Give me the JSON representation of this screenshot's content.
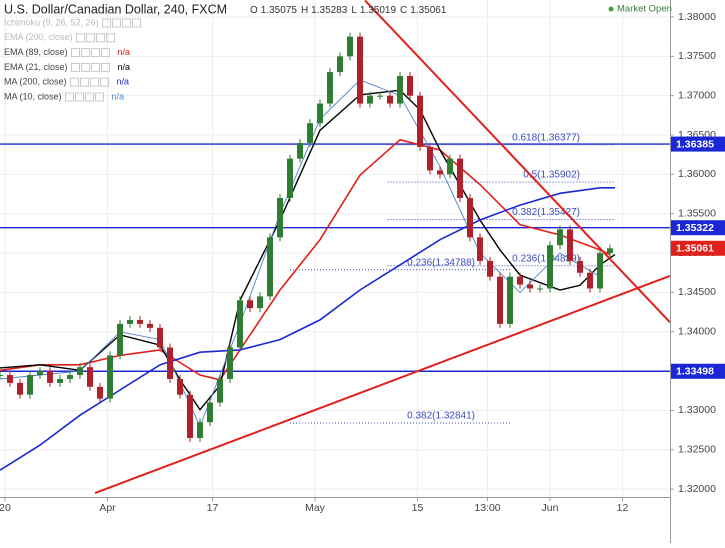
{
  "chart_data": {
    "type": "candlestick",
    "title": "U.S. Dollar/Canadian Dollar, 240, FXCM",
    "ohlc": [
      {
        "label": "O",
        "value": 1.35075
      },
      {
        "label": "H",
        "value": 1.35283
      },
      {
        "label": "L",
        "value": 1.35019
      },
      {
        "label": "C",
        "value": 1.35061
      }
    ],
    "status": "Market Open",
    "hidden_indicators": [
      "Ichimoku (9, 26, 52, 26)",
      "EMA (200, close)"
    ],
    "up_color": "#2e7d32",
    "down_color": "#b0222b",
    "x": [
      0,
      2,
      4,
      6,
      8,
      10,
      12,
      14,
      16,
      18,
      20,
      22,
      24,
      26,
      28,
      30,
      32,
      34,
      36,
      38,
      40,
      42,
      44,
      46,
      48,
      50,
      52,
      54,
      56,
      58,
      60,
      62,
      64,
      66,
      68,
      70,
      72,
      74,
      76,
      78,
      80,
      82,
      84,
      86,
      88,
      90,
      92,
      94,
      96,
      98,
      100,
      102,
      104,
      106,
      108,
      110,
      112,
      114,
      116,
      118,
      120,
      122
    ],
    "values": [
      1.3345,
      1.3335,
      1.332,
      1.3345,
      1.335,
      1.3335,
      1.334,
      1.3345,
      1.3355,
      1.333,
      1.3315,
      1.337,
      1.341,
      1.3415,
      1.341,
      1.3405,
      1.338,
      1.334,
      1.332,
      1.3265,
      1.3285,
      1.331,
      1.334,
      1.338,
      1.344,
      1.343,
      1.3445,
      1.352,
      1.357,
      1.362,
      1.364,
      1.3665,
      1.369,
      1.373,
      1.375,
      1.3775,
      1.369,
      1.37,
      1.37,
      1.369,
      1.3725,
      1.37,
      1.3635,
      1.3605,
      1.36,
      1.362,
      1.357,
      1.352,
      1.349,
      1.347,
      1.341,
      1.347,
      1.346,
      1.3455,
      1.3455,
      1.351,
      1.353,
      1.349,
      1.3475,
      1.3455,
      1.35,
      1.3506
    ],
    "series": [
      {
        "name": "EMA (89, close)",
        "status": "n/a",
        "color": "#e0201b",
        "width": 1.6,
        "x": [
          0,
          8,
          16,
          24,
          32,
          40,
          44,
          48,
          56,
          64,
          72,
          80,
          88,
          96,
          104,
          112,
          120,
          122
        ],
        "values": [
          1.3351,
          1.3358,
          1.3358,
          1.337,
          1.3377,
          1.3345,
          1.3339,
          1.3377,
          1.3453,
          1.3517,
          1.3599,
          1.3644,
          1.3631,
          1.3587,
          1.3536,
          1.3523,
          1.3504,
          1.3498
        ]
      },
      {
        "name": "EMA (21, close)",
        "status": "n/a",
        "color": "#000000",
        "width": 1.4,
        "x": [
          0,
          8,
          16,
          24,
          32,
          36,
          40,
          44,
          48,
          56,
          64,
          72,
          80,
          84,
          88,
          96,
          100,
          104,
          112,
          116,
          120,
          123
        ],
        "values": [
          1.3354,
          1.3358,
          1.3351,
          1.3396,
          1.3383,
          1.3339,
          1.3301,
          1.3332,
          1.344,
          1.3542,
          1.3656,
          1.3701,
          1.3707,
          1.3682,
          1.3631,
          1.3542,
          1.3504,
          1.3472,
          1.3453,
          1.3459,
          1.3485,
          1.3498
        ]
      },
      {
        "name": "MA (200, close)",
        "status": "n/a",
        "color": "#1b26d6",
        "width": 1.6,
        "x": [
          0,
          8,
          16,
          24,
          32,
          40,
          48,
          56,
          64,
          72,
          80,
          88,
          96,
          104,
          112,
          120,
          123
        ],
        "values": [
          1.3224,
          1.3256,
          1.3294,
          1.3326,
          1.3358,
          1.3374,
          1.3377,
          1.339,
          1.3415,
          1.3453,
          1.3485,
          1.3517,
          1.3542,
          1.3561,
          1.3576,
          1.3583,
          1.3583
        ]
      },
      {
        "name": "MA (10, close)",
        "status": "n/a",
        "color": "#4a86c8",
        "width": 0.9,
        "x": [
          0,
          8,
          16,
          24,
          32,
          40,
          48,
          56,
          64,
          72,
          80,
          88,
          96,
          104,
          112,
          120
        ],
        "values": [
          1.334,
          1.3345,
          1.335,
          1.34,
          1.339,
          1.328,
          1.341,
          1.355,
          1.367,
          1.372,
          1.37,
          1.361,
          1.35,
          1.345,
          1.35,
          1.347
        ]
      }
    ],
    "hlines": [
      {
        "value": 1.36385,
        "label": "1.36385",
        "color": "#1b26d6"
      },
      {
        "value": 1.35322,
        "label": "1.35322",
        "color": "#1b26d6"
      },
      {
        "value": 1.33498,
        "label": "1.33498",
        "color": "#1b26d6"
      }
    ],
    "price_label": {
      "value": 1.35061,
      "label": "1.35061",
      "color": "#e0201b"
    },
    "fib_levels": [
      {
        "label": "0.618(1.36377)",
        "value": 1.36377,
        "x": [
          77.5,
          123
        ]
      },
      {
        "label": "0.5(1.35902)",
        "value": 1.35902,
        "x": [
          77.5,
          123
        ]
      },
      {
        "label": "0.382(1.35427)",
        "value": 1.35427,
        "x": [
          77.5,
          123
        ]
      },
      {
        "label": "0.236(1.34839)",
        "value": 1.34839,
        "x": [
          77.5,
          123
        ]
      },
      {
        "label": "0.236(1.34788)",
        "value": 1.34788,
        "x": [
          58,
          102
        ]
      },
      {
        "label": "0.382(1.32841)",
        "value": 1.32841,
        "x": [
          58,
          102
        ]
      }
    ],
    "fib_color": "#3a4cc0",
    "trendlines": [
      {
        "x": [
          73,
          134
        ],
        "values": [
          1.3821,
          1.3412
        ],
        "color": "#e0201b"
      },
      {
        "x": [
          19,
          134
        ],
        "values": [
          1.3195,
          1.3471
        ],
        "color": "#e0201b"
      }
    ],
    "xlim": [
      0,
      134
    ],
    "ylim": [
      1.319,
      1.38216
    ],
    "xticks": [
      {
        "value": 1,
        "label": "20"
      },
      {
        "value": 21.5,
        "label": "Apr"
      },
      {
        "value": 42.5,
        "label": "17"
      },
      {
        "value": 63,
        "label": "May"
      },
      {
        "value": 83.5,
        "label": "15"
      },
      {
        "value": 97.5,
        "label": "13:00"
      },
      {
        "value": 110,
        "label": "Jun"
      },
      {
        "value": 124.5,
        "label": "12"
      }
    ],
    "yticks": [
      {
        "value": 1.32,
        "label": "1.32000"
      },
      {
        "value": 1.325,
        "label": "1.32500"
      },
      {
        "value": 1.33,
        "label": "1.33000"
      },
      {
        "value": 1.335,
        "label": "1.33500"
      },
      {
        "value": 1.34,
        "label": "1.34000"
      },
      {
        "value": 1.345,
        "label": "1.34500"
      },
      {
        "value": 1.35,
        "label": "1.35000"
      },
      {
        "value": 1.355,
        "label": "1.35500"
      },
      {
        "value": 1.36,
        "label": "1.36000"
      },
      {
        "value": 1.365,
        "label": "1.36500"
      },
      {
        "value": 1.37,
        "label": "1.37000"
      },
      {
        "value": 1.375,
        "label": "1.37500"
      },
      {
        "value": 1.38,
        "label": "1.38000"
      }
    ],
    "grid": true
  }
}
